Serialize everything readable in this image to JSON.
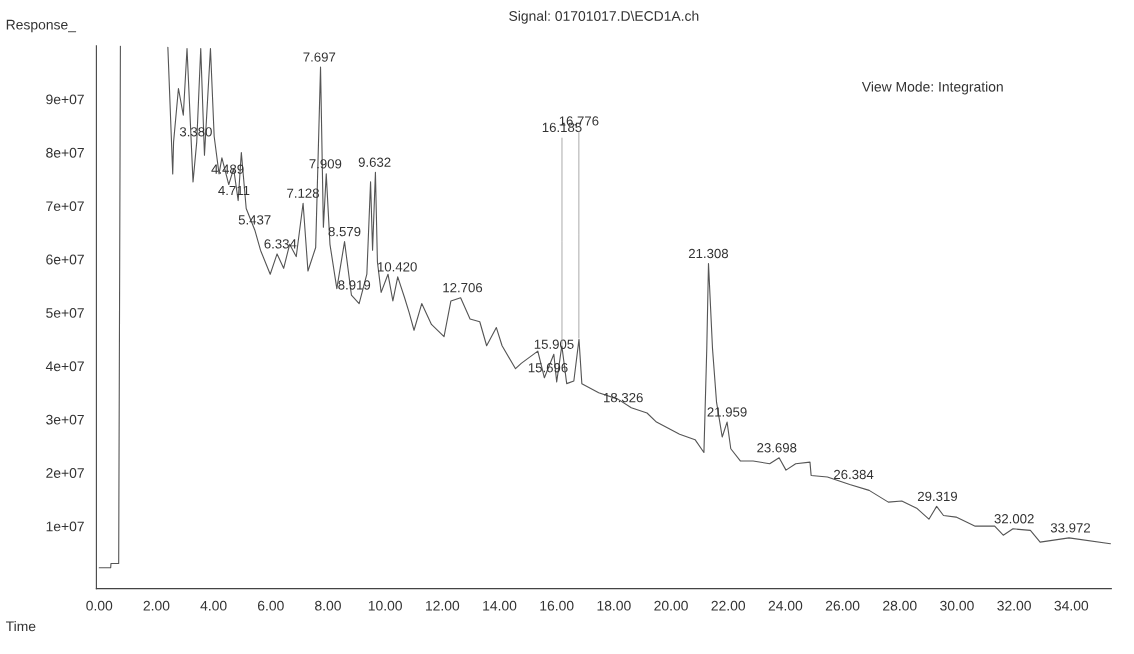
{
  "chart_data": {
    "type": "line",
    "title": "Signal: 01701017.D\\ECD1A.ch",
    "xlabel": "Time",
    "ylabel": "Response_",
    "annotations": [
      "View Mode: Integration",
      {
        "text": "3.380",
        "x": 3.38,
        "y": 82000000
      },
      {
        "text": "4.489",
        "x": 4.489,
        "y": 75000000
      },
      {
        "text": "4.711",
        "x": 4.711,
        "y": 71000000
      },
      {
        "text": "5.437",
        "x": 5.437,
        "y": 65500000
      },
      {
        "text": "6.334",
        "x": 6.334,
        "y": 61000000
      },
      {
        "text": "7.128",
        "x": 7.128,
        "y": 70500000
      },
      {
        "text": "7.697",
        "x": 7.697,
        "y": 96000000
      },
      {
        "text": "7.909",
        "x": 7.909,
        "y": 76000000
      },
      {
        "text": "8.579",
        "x": 8.579,
        "y": 63300000
      },
      {
        "text": "8.919",
        "x": 8.919,
        "y": 53300000
      },
      {
        "text": "9.632",
        "x": 9.632,
        "y": 76300000
      },
      {
        "text": "10.420",
        "x": 10.42,
        "y": 56700000
      },
      {
        "text": "12.706",
        "x": 12.706,
        "y": 52800000
      },
      {
        "text": "15.696",
        "x": 15.696,
        "y": 37800000
      },
      {
        "text": "15.905",
        "x": 15.905,
        "y": 42200000
      },
      {
        "text": "16.185",
        "x": 16.185,
        "y": 43800000
      },
      {
        "text": "16.776",
        "x": 16.776,
        "y": 45000000
      },
      {
        "text": "18.326",
        "x": 18.326,
        "y": 32200000
      },
      {
        "text": "21.308",
        "x": 21.308,
        "y": 59200000
      },
      {
        "text": "21.959",
        "x": 21.959,
        "y": 29500000
      },
      {
        "text": "23.698",
        "x": 23.698,
        "y": 22800000
      },
      {
        "text": "26.384",
        "x": 26.384,
        "y": 17800000
      },
      {
        "text": "29.319",
        "x": 29.319,
        "y": 13700000
      },
      {
        "text": "32.002",
        "x": 32.002,
        "y": 9500000
      },
      {
        "text": "33.972",
        "x": 33.972,
        "y": 7800000
      }
    ],
    "series": [
      {
        "color": "#555555",
        "x": [
          0,
          0.4,
          0.41,
          0.68,
          0.74,
          1.5,
          2.4,
          2.57,
          2.6,
          2.77,
          2.94,
          3.07,
          3.28,
          3.41,
          3.55,
          3.68,
          3.89,
          4.02,
          4.19,
          4.29,
          4.53,
          4.7,
          4.86,
          4.97,
          5.14,
          5.44,
          5.64,
          5.98,
          6.22,
          6.45,
          6.66,
          6.89,
          7.13,
          7.3,
          7.57,
          7.74,
          7.84,
          7.94,
          8.07,
          8.31,
          8.58,
          8.82,
          9.09,
          9.36,
          9.49,
          9.56,
          9.66,
          9.73,
          9.86,
          10.1,
          10.27,
          10.44,
          10.68,
          10.84,
          11.01,
          11.28,
          11.62,
          12.06,
          12.3,
          12.64,
          12.97,
          13.31,
          13.55,
          13.89,
          14.09,
          14.56,
          14.76,
          15.34,
          15.57,
          15.9,
          16.0,
          16.18,
          16.35,
          16.6,
          16.78,
          16.88,
          17.47,
          18.14,
          18.61,
          19.16,
          19.49,
          20.3,
          20.84,
          21.15,
          21.25,
          21.31,
          21.45,
          21.59,
          21.79,
          21.96,
          22.09,
          22.43,
          22.87,
          23.45,
          23.78,
          24.02,
          24.36,
          24.86,
          24.9,
          25.47,
          26.25,
          26.93,
          27.6,
          28.07,
          28.61,
          29.02,
          29.29,
          29.53,
          29.97,
          30.64,
          31.32,
          31.62,
          31.96,
          32.57,
          32.91,
          33.92,
          35.37
        ],
        "values": [
          2200000.0,
          2200000.0,
          3000000.0,
          3000000.0,
          100000000.0,
          null,
          99700000.0,
          76000000.0,
          82000000.0,
          92000000.0,
          87000000.0,
          99500000.0,
          74500000.0,
          82000000.0,
          99500000.0,
          79500000.0,
          99500000.0,
          83000000.0,
          76000000.0,
          79000000.0,
          74000000.0,
          77000000.0,
          71000000.0,
          80000000.0,
          69500000.0,
          65500000.0,
          61700000.0,
          57200000.0,
          61000000.0,
          58300000.0,
          62800000.0,
          60500000.0,
          70500000.0,
          57800000.0,
          62200000.0,
          96000000.0,
          66000000.0,
          76000000.0,
          62800000.0,
          54500000.0,
          63300000.0,
          53300000.0,
          51700000.0,
          57200000.0,
          74500000.0,
          61700000.0,
          76300000.0,
          59500000.0,
          53800000.0,
          57200000.0,
          52200000.0,
          56700000.0,
          52800000.0,
          50000000.0,
          46700000.0,
          51700000.0,
          47800000.0,
          45500000.0,
          52200000.0,
          52800000.0,
          48800000.0,
          48300000.0,
          43800000.0,
          47200000.0,
          43800000.0,
          39500000.0,
          40500000.0,
          42800000.0,
          37800000.0,
          42200000.0,
          37000000.0,
          43800000.0,
          36700000.0,
          37200000.0,
          45000000.0,
          36700000.0,
          35000000.0,
          33800000.0,
          32200000.0,
          31200000.0,
          29500000.0,
          27200000.0,
          26200000.0,
          23800000.0,
          43300000.0,
          59200000.0,
          43300000.0,
          33300000.0,
          26700000.0,
          29500000.0,
          24500000.0,
          22200000.0,
          22200000.0,
          21700000.0,
          22800000.0,
          20500000.0,
          21700000.0,
          22000000.0,
          19500000.0,
          19200000.0,
          17800000.0,
          16700000.0,
          14500000.0,
          14700000.0,
          13300000.0,
          11300000.0,
          13700000.0,
          12000000.0,
          11700000.0,
          10000000.0,
          10000000.0,
          8300000.0,
          9500000.0,
          9200000.0,
          7000000.0,
          7800000.0,
          6700000.0
        ]
      }
    ],
    "xlim": [
      -0.1,
      35.4
    ],
    "ylim": [
      -1700000,
      100000000
    ],
    "xticks": [
      {
        "value": 0,
        "label": "0.00"
      },
      {
        "value": 2,
        "label": "2.00"
      },
      {
        "value": 4,
        "label": "4.00"
      },
      {
        "value": 6,
        "label": "6.00"
      },
      {
        "value": 8,
        "label": "8.00"
      },
      {
        "value": 10,
        "label": "10.00"
      },
      {
        "value": 12,
        "label": "12.00"
      },
      {
        "value": 14,
        "label": "14.00"
      },
      {
        "value": 16,
        "label": "16.00"
      },
      {
        "value": 18,
        "label": "18.00"
      },
      {
        "value": 20,
        "label": "20.00"
      },
      {
        "value": 22,
        "label": "22.00"
      },
      {
        "value": 24,
        "label": "24.00"
      },
      {
        "value": 26,
        "label": "26.00"
      },
      {
        "value": 28,
        "label": "28.00"
      },
      {
        "value": 30,
        "label": "30.00"
      },
      {
        "value": 32,
        "label": "32.00"
      },
      {
        "value": 34,
        "label": "34.00"
      }
    ],
    "yticks": [
      {
        "value": 10000000,
        "label": "1e+07"
      },
      {
        "value": 20000000,
        "label": "2e+07"
      },
      {
        "value": 30000000,
        "label": "3e+07"
      },
      {
        "value": 40000000,
        "label": "4e+07"
      },
      {
        "value": 50000000,
        "label": "5e+07"
      },
      {
        "value": 60000000,
        "label": "6e+07"
      },
      {
        "value": 70000000,
        "label": "7e+07"
      },
      {
        "value": 80000000,
        "label": "8e+07"
      },
      {
        "value": 90000000,
        "label": "9e+07"
      }
    ],
    "grid": false,
    "marker": "none",
    "line_style": "solid"
  }
}
